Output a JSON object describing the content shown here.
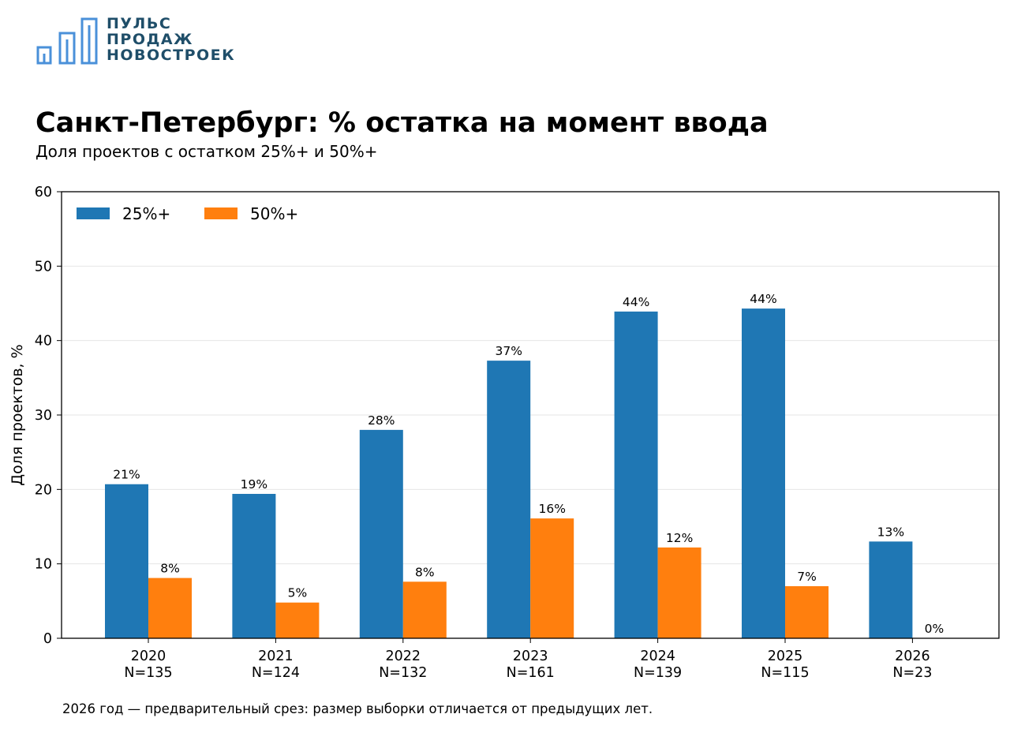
{
  "brand": {
    "logo_icon": "bar-chart-building-icon",
    "line1": "ПУЛЬС",
    "line2": "ПРОДАЖ",
    "line3": "НОВОСТРОЕК",
    "color": "#1f4e69",
    "icon_color": "#4a90d9"
  },
  "title": "Санкт-Петербург: % остатка на момент ввода",
  "subtitle": "Доля проектов с остатком 25%+ и 50%+",
  "footnote": "2026 год — предварительный срез: размер выборки отличается от предыдущих лет.",
  "chart_data": {
    "type": "bar",
    "categories": [
      "2020",
      "2021",
      "2022",
      "2023",
      "2024",
      "2025",
      "2026"
    ],
    "category_sublabels": [
      "N=135",
      "N=124",
      "N=132",
      "N=161",
      "N=139",
      "N=115",
      "N=23"
    ],
    "series": [
      {
        "name": "25%+",
        "color": "#1f77b4",
        "values": [
          20.7,
          19.4,
          28.0,
          37.3,
          43.9,
          44.3,
          13.0
        ],
        "labels": [
          "21%",
          "19%",
          "28%",
          "37%",
          "44%",
          "44%",
          "13%"
        ]
      },
      {
        "name": "50%+",
        "color": "#ff7f0e",
        "values": [
          8.1,
          4.8,
          7.6,
          16.1,
          12.2,
          7.0,
          0.0
        ],
        "labels": [
          "8%",
          "5%",
          "8%",
          "16%",
          "12%",
          "7%",
          "0%"
        ]
      }
    ],
    "ylabel": "Доля проектов, %",
    "xlabel": "",
    "ylim": [
      0,
      60
    ],
    "yticks": [
      0,
      10,
      20,
      30,
      40,
      50,
      60
    ],
    "grid": "horizontal",
    "legend": "top-left"
  }
}
